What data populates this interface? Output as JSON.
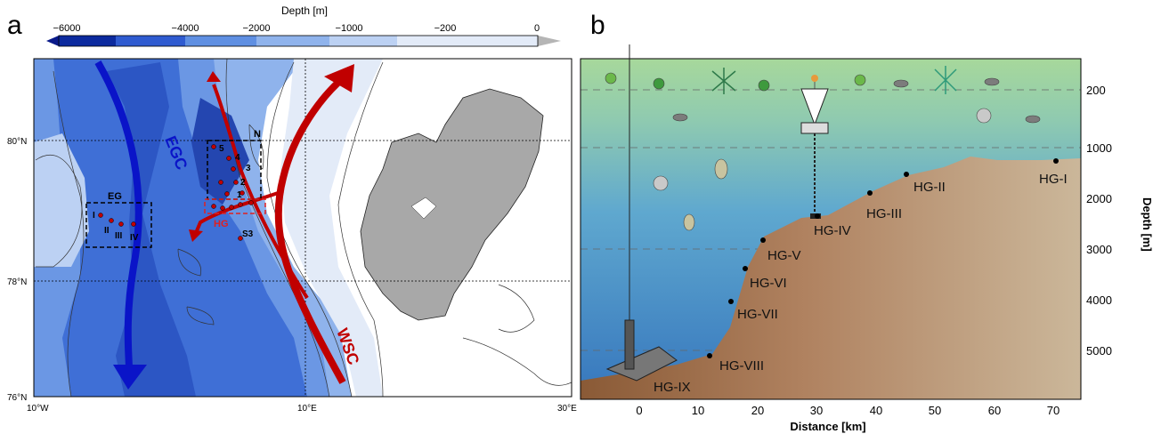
{
  "panel_a": {
    "letter": "a",
    "colorbar_title": "Depth [m]",
    "colorbar_ticks": [
      "−6000",
      "−4000",
      "−2000",
      "−1000",
      "−200",
      "0"
    ],
    "lat_labels": [
      "80°N",
      "78°N",
      "76°N"
    ],
    "lon_labels": [
      "10°W",
      "10°E",
      "30°E"
    ],
    "current_egc": "EGC",
    "current_wsc": "WSC",
    "box_n": "N",
    "box_eg": "EG",
    "box_hg": "HG",
    "station_s3": "S3",
    "n_stations": [
      "5",
      "4",
      "3",
      "2",
      "1"
    ],
    "eg_stations": [
      "I",
      "II",
      "III",
      "IV"
    ],
    "colors": {
      "egc": "#0a14c8",
      "wsc": "#c00000",
      "hg_box": "#e02020",
      "land": "#a8a8a8"
    }
  },
  "panel_b": {
    "letter": "b",
    "x_axis_label": "Distance [km]",
    "x_ticks": [
      "0",
      "10",
      "20",
      "30",
      "40",
      "50",
      "60",
      "70"
    ],
    "y_axis_label": "Depth [m]",
    "y_ticks": [
      "200",
      "1000",
      "2000",
      "3000",
      "4000",
      "5000"
    ],
    "stations": [
      "HG-I",
      "HG-II",
      "HG-III",
      "HG-IV",
      "HG-V",
      "HG-VI",
      "HG-VII",
      "HG-VIII",
      "HG-IX"
    ],
    "colors": {
      "surface": "#9fd59a",
      "deep": "#3f86c9",
      "seafloor": "#a9794f"
    }
  }
}
